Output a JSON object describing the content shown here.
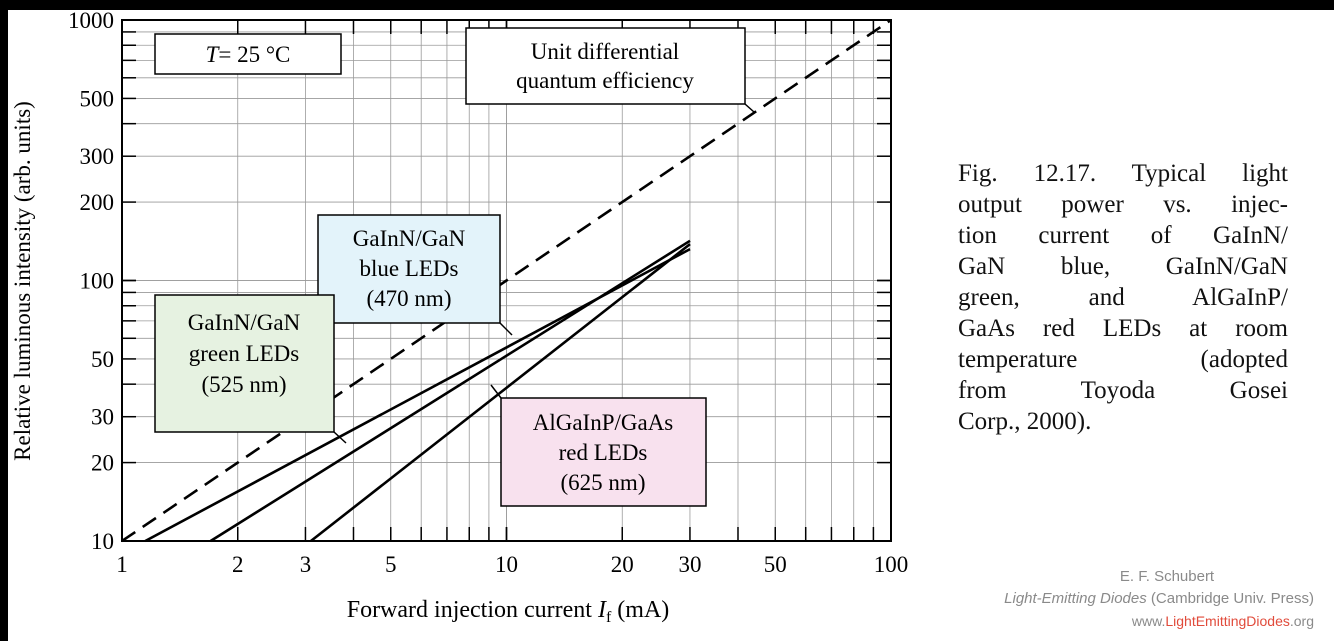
{
  "chart_data": {
    "type": "line",
    "xscale": "log",
    "yscale": "log",
    "xlim": [
      1,
      100
    ],
    "ylim": [
      10,
      1000
    ],
    "grid": true,
    "xlabel": "Forward injection current",
    "xlabel_symbol": "I",
    "xlabel_subscript": "f",
    "xlabel_unit": "(mA)",
    "ylabel": "Relative luminous intensity  (arb. units)",
    "x_ticks": [
      "1",
      "2",
      "3",
      "5",
      "10",
      "20",
      "30",
      "50",
      "100"
    ],
    "y_ticks": [
      "10",
      "20",
      "30",
      "50",
      "100",
      "200",
      "300",
      "500",
      "1000"
    ],
    "series": [
      {
        "style": "dashed",
        "x": [
          1,
          100
        ],
        "y": [
          10,
          1000
        ]
      },
      {
        "x": [
          1.15,
          30
        ],
        "y": [
          10,
          132
        ]
      },
      {
        "x": [
          1.7,
          30
        ],
        "y": [
          10,
          142
        ]
      },
      {
        "x": [
          3.1,
          30
        ],
        "y": [
          10,
          138
        ]
      }
    ],
    "annotations": {
      "temperature_prefix": "T",
      "temperature_value": "= 25 °C",
      "unit_line1": "Unit differential",
      "unit_line2": "quantum efficiency",
      "blue_line1": "GaInN/GaN",
      "blue_line2": "blue LEDs",
      "blue_line3": "(470 nm)",
      "green_line1": "GaInN/GaN",
      "green_line2": "green LEDs",
      "green_line3": "(525 nm)",
      "red_line1": "AlGaInP/GaAs",
      "red_line2": "red LEDs",
      "red_line3": "(625 nm)"
    },
    "colors": {
      "blue_box": "#e3f3fa",
      "green_box": "#e6f2e1",
      "red_box": "#f8e1ee"
    }
  },
  "caption_lines": [
    "Fig. 12.17. Typical light",
    "output power vs. injec-",
    "tion current of GaInN/",
    "GaN blue, GaInN/GaN",
    "green, and AlGaInP/",
    "GaAs red LEDs at room",
    "temperature (adopted",
    "from Toyoda Gosei",
    "Corp., 2000)."
  ],
  "credit": {
    "author": "E. F. Schubert",
    "book_title": "Light-Emitting Diodes",
    "publisher": " (Cambridge Univ. Press)",
    "url_prefix": "www.",
    "url_1": "Light",
    "url_2": "Emitting",
    "url_3": "Diodes",
    "url_suffix": ".org"
  }
}
